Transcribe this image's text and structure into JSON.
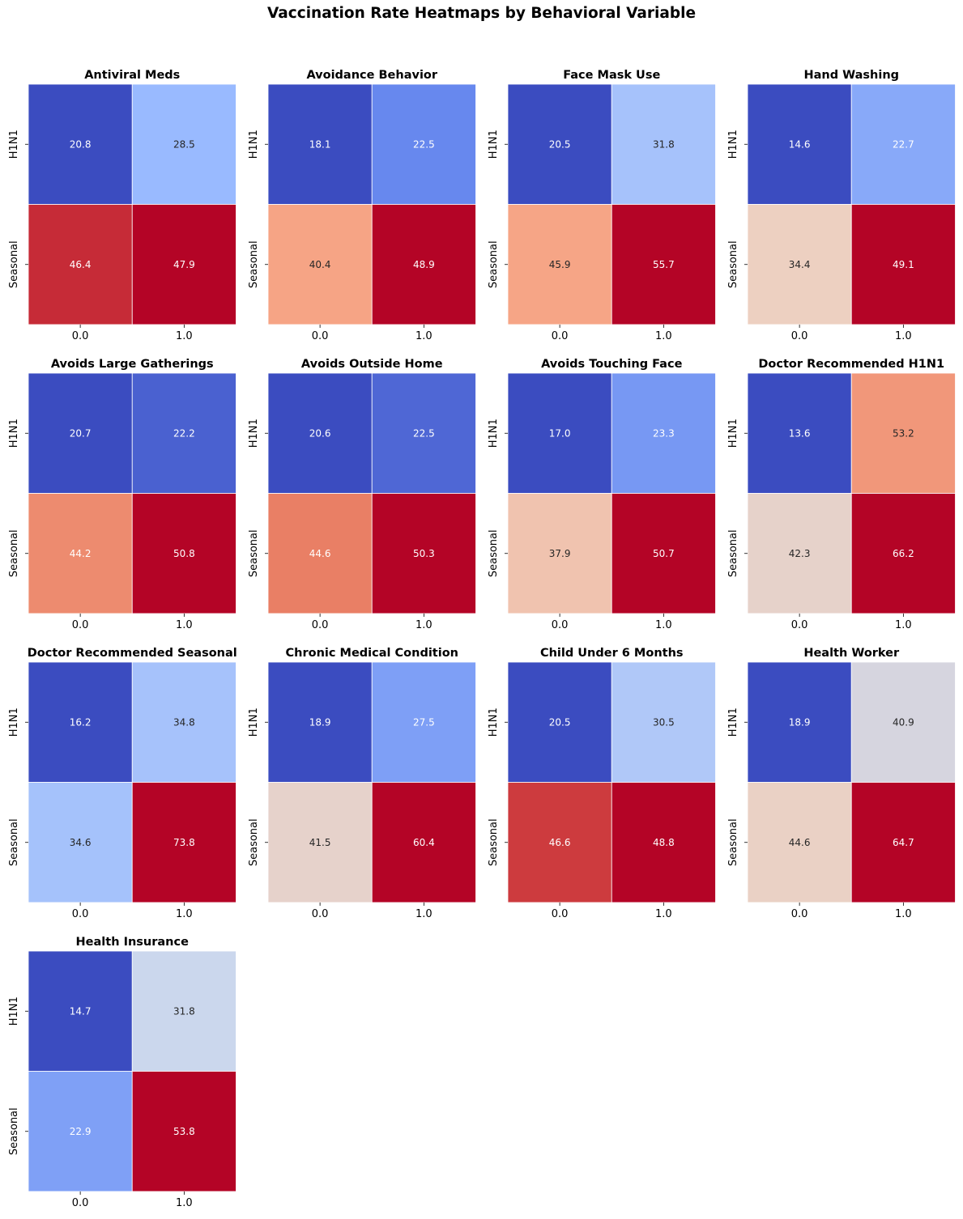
{
  "suptitle": "Vaccination Rate Heatmaps by Behavioral Variable",
  "colormap": {
    "name": "coolwarm",
    "stops": [
      "#3b4cc0",
      "#6788ee",
      "#9abbff",
      "#c9d7f0",
      "#edd1c2",
      "#f7a889",
      "#e26952",
      "#b40426"
    ]
  },
  "annotation_colors": {
    "light": "#ffffff",
    "dark": "#262626"
  },
  "chart_data": [
    {
      "type": "heatmap",
      "title": "Antiviral Meds",
      "x_labels": [
        "0.0",
        "1.0"
      ],
      "y_labels": [
        "H1N1",
        "Seasonal"
      ],
      "values": [
        [
          20.8,
          28.5
        ],
        [
          46.4,
          47.9
        ]
      ],
      "cell_labels": [
        [
          "20.8",
          "28.5"
        ],
        [
          "46.4",
          "47.9"
        ]
      ]
    },
    {
      "type": "heatmap",
      "title": "Avoidance Behavior",
      "x_labels": [
        "0.0",
        "1.0"
      ],
      "y_labels": [
        "H1N1",
        "Seasonal"
      ],
      "values": [
        [
          18.1,
          22.5
        ],
        [
          40.4,
          48.9
        ]
      ],
      "cell_labels": [
        [
          "18.1",
          "22.5"
        ],
        [
          "40.4",
          "48.9"
        ]
      ]
    },
    {
      "type": "heatmap",
      "title": "Face Mask Use",
      "x_labels": [
        "0.0",
        "1.0"
      ],
      "y_labels": [
        "H1N1",
        "Seasonal"
      ],
      "values": [
        [
          20.5,
          31.8
        ],
        [
          45.9,
          55.7
        ]
      ],
      "cell_labels": [
        [
          "20.5",
          "31.8"
        ],
        [
          "45.9",
          "55.7"
        ]
      ]
    },
    {
      "type": "heatmap",
      "title": "Hand Washing",
      "x_labels": [
        "0.0",
        "1.0"
      ],
      "y_labels": [
        "H1N1",
        "Seasonal"
      ],
      "values": [
        [
          14.6,
          22.7
        ],
        [
          34.4,
          49.1
        ]
      ],
      "cell_labels": [
        [
          "14.6",
          "22.7"
        ],
        [
          "34.4",
          "49.1"
        ]
      ]
    },
    {
      "type": "heatmap",
      "title": "Avoids Large Gatherings",
      "x_labels": [
        "0.0",
        "1.0"
      ],
      "y_labels": [
        "H1N1",
        "Seasonal"
      ],
      "values": [
        [
          20.7,
          22.2
        ],
        [
          44.2,
          50.8
        ]
      ],
      "cell_labels": [
        [
          "20.7",
          "22.2"
        ],
        [
          "44.2",
          "50.8"
        ]
      ]
    },
    {
      "type": "heatmap",
      "title": "Avoids Outside Home",
      "x_labels": [
        "0.0",
        "1.0"
      ],
      "y_labels": [
        "H1N1",
        "Seasonal"
      ],
      "values": [
        [
          20.6,
          22.5
        ],
        [
          44.6,
          50.3
        ]
      ],
      "cell_labels": [
        [
          "20.6",
          "22.5"
        ],
        [
          "44.6",
          "50.3"
        ]
      ]
    },
    {
      "type": "heatmap",
      "title": "Avoids Touching Face",
      "x_labels": [
        "0.0",
        "1.0"
      ],
      "y_labels": [
        "H1N1",
        "Seasonal"
      ],
      "values": [
        [
          17.0,
          23.3
        ],
        [
          37.9,
          50.7
        ]
      ],
      "cell_labels": [
        [
          "17.0",
          "23.3"
        ],
        [
          "37.9",
          "50.7"
        ]
      ]
    },
    {
      "type": "heatmap",
      "title": "Doctor Recommended H1N1",
      "x_labels": [
        "0.0",
        "1.0"
      ],
      "y_labels": [
        "H1N1",
        "Seasonal"
      ],
      "values": [
        [
          13.6,
          53.2
        ],
        [
          42.3,
          66.2
        ]
      ],
      "cell_labels": [
        [
          "13.6",
          "53.2"
        ],
        [
          "42.3",
          "66.2"
        ]
      ]
    },
    {
      "type": "heatmap",
      "title": "Doctor Recommended Seasonal",
      "x_labels": [
        "0.0",
        "1.0"
      ],
      "y_labels": [
        "H1N1",
        "Seasonal"
      ],
      "values": [
        [
          16.2,
          34.8
        ],
        [
          34.6,
          73.8
        ]
      ],
      "cell_labels": [
        [
          "16.2",
          "34.8"
        ],
        [
          "34.6",
          "73.8"
        ]
      ]
    },
    {
      "type": "heatmap",
      "title": "Chronic Medical Condition",
      "x_labels": [
        "0.0",
        "1.0"
      ],
      "y_labels": [
        "H1N1",
        "Seasonal"
      ],
      "values": [
        [
          18.9,
          27.5
        ],
        [
          41.5,
          60.4
        ]
      ],
      "cell_labels": [
        [
          "18.9",
          "27.5"
        ],
        [
          "41.5",
          "60.4"
        ]
      ]
    },
    {
      "type": "heatmap",
      "title": "Child Under 6 Months",
      "x_labels": [
        "0.0",
        "1.0"
      ],
      "y_labels": [
        "H1N1",
        "Seasonal"
      ],
      "values": [
        [
          20.5,
          30.5
        ],
        [
          46.6,
          48.8
        ]
      ],
      "cell_labels": [
        [
          "20.5",
          "30.5"
        ],
        [
          "46.6",
          "48.8"
        ]
      ]
    },
    {
      "type": "heatmap",
      "title": "Health Worker",
      "x_labels": [
        "0.0",
        "1.0"
      ],
      "y_labels": [
        "H1N1",
        "Seasonal"
      ],
      "values": [
        [
          18.9,
          40.9
        ],
        [
          44.6,
          64.7
        ]
      ],
      "cell_labels": [
        [
          "18.9",
          "40.9"
        ],
        [
          "44.6",
          "64.7"
        ]
      ]
    },
    {
      "type": "heatmap",
      "title": "Health Insurance",
      "x_labels": [
        "0.0",
        "1.0"
      ],
      "y_labels": [
        "H1N1",
        "Seasonal"
      ],
      "values": [
        [
          14.7,
          31.8
        ],
        [
          22.9,
          53.8
        ]
      ],
      "cell_labels": [
        [
          "14.7",
          "31.8"
        ],
        [
          "22.9",
          "53.8"
        ]
      ]
    }
  ]
}
